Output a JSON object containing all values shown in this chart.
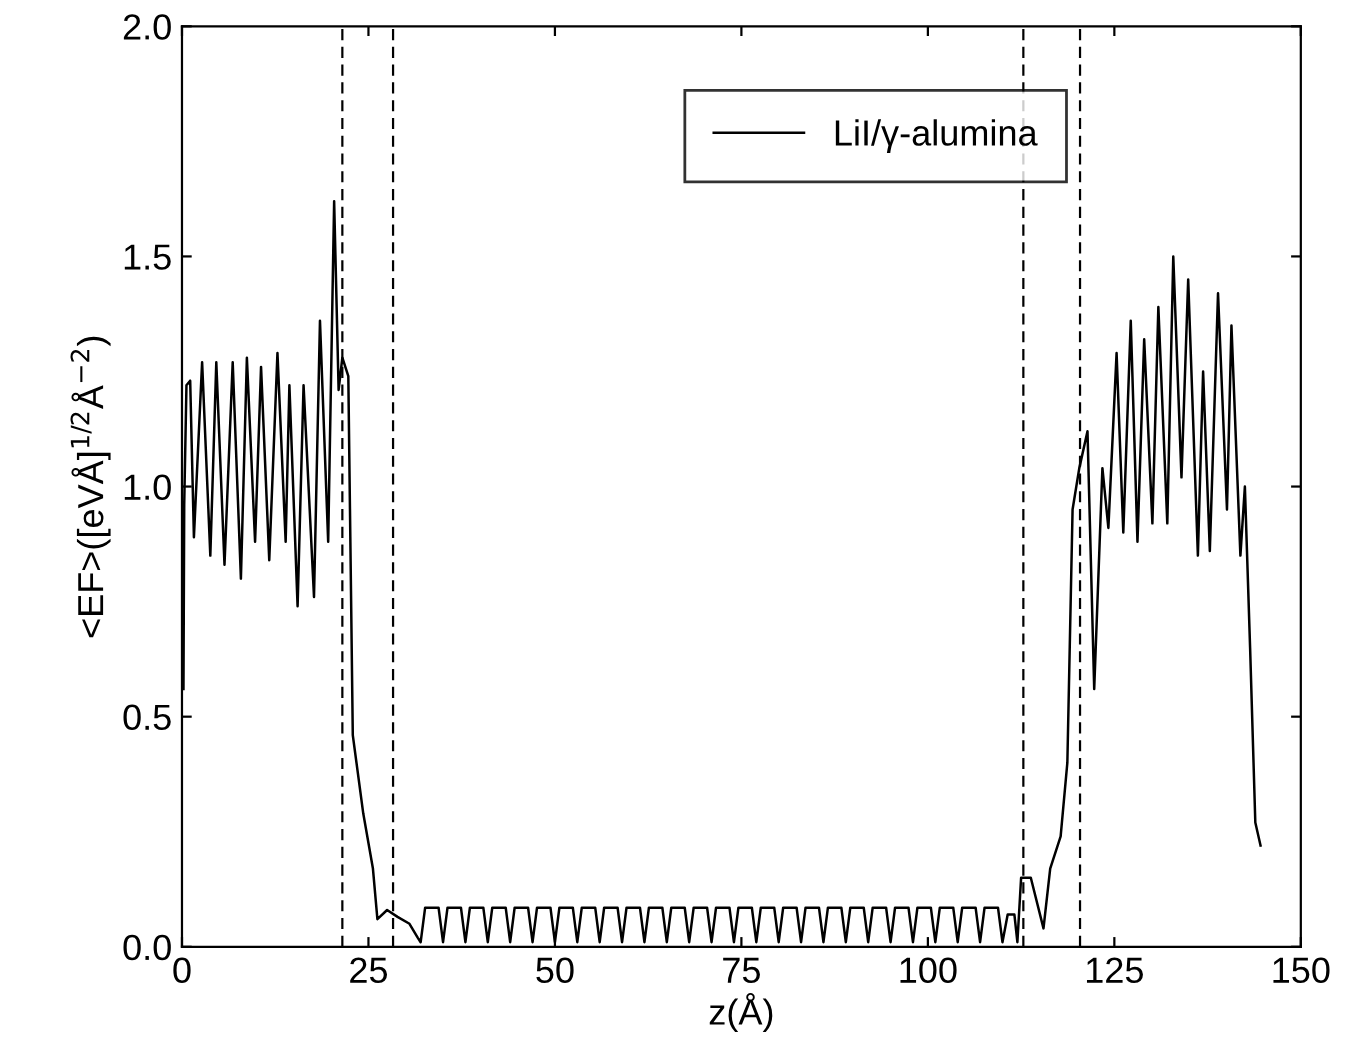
{
  "chart_data": {
    "type": "line",
    "xlabel": "z(Å)",
    "ylabel": "<EF>([eVÅ]$^{1/2}$Å$^{−2}$)",
    "xlim": [
      0,
      150
    ],
    "ylim": [
      0,
      2.0
    ],
    "xticks": [
      0,
      25,
      50,
      75,
      100,
      125,
      150
    ],
    "yticks": [
      {
        "value": 0,
        "label": "0.0"
      },
      {
        "value": 0.5,
        "label": "0.5"
      },
      {
        "value": 1.0,
        "label": "1.0"
      },
      {
        "value": 1.5,
        "label": "1.5"
      },
      {
        "value": 2.0,
        "label": "2.0"
      }
    ],
    "grid": false,
    "legend": "top",
    "marker": "none",
    "line_style": "solid",
    "ref_lines": [
      {
        "axis": "x",
        "value": 21.5,
        "color": "#000000",
        "line_style": "dashed"
      },
      {
        "axis": "x",
        "value": 28.3,
        "color": "#000000",
        "line_style": "dashed"
      },
      {
        "axis": "x",
        "value": 112.8,
        "color": "#000000",
        "line_style": "dashed"
      },
      {
        "axis": "x",
        "value": 120.4,
        "color": "#000000",
        "line_style": "dashed"
      }
    ],
    "series": [
      {
        "name": "LiI/γ-alumina",
        "color": "#000000",
        "x": [
          0.2,
          0.3,
          0.6,
          1.1,
          1.6,
          2.7,
          3.8,
          4.6,
          5.7,
          6.8,
          7.9,
          8.7,
          9.8,
          10.6,
          11.7,
          12.8,
          13.9,
          14.4,
          15.5,
          16.3,
          17.7,
          18.5,
          19.6,
          20.4,
          21.0,
          21.5,
          22.3,
          22.9,
          24.3,
          25.6,
          26.2,
          27.5,
          28.9,
          30.5,
          31.6,
          32,
          32.6,
          34.4,
          35,
          35.6,
          37.4,
          38,
          38.6,
          40.4,
          41,
          41.6,
          43.4,
          44,
          44.6,
          46.4,
          47,
          47.6,
          49.4,
          50,
          50.6,
          52.4,
          53,
          53.6,
          55.4,
          56,
          56.6,
          58.4,
          59,
          59.6,
          61.4,
          62,
          62.6,
          64.4,
          65,
          65.6,
          67.4,
          68,
          68.6,
          70.4,
          71,
          71.6,
          73.4,
          74,
          74.6,
          76.4,
          77,
          77.6,
          79.4,
          80,
          80.6,
          82.4,
          83,
          83.6,
          85.4,
          86,
          86.6,
          88.4,
          89,
          89.6,
          91.4,
          92,
          92.6,
          94.4,
          95,
          95.6,
          97.4,
          98,
          98.6,
          100.4,
          101,
          101.6,
          103.4,
          104,
          104.6,
          106.4,
          107,
          107.6,
          109.4,
          110,
          110.7,
          111.6,
          112.0,
          112.5,
          113.8,
          115.5,
          116.4,
          117.8,
          118.7,
          119.4,
          120.3,
          121.4,
          122.3,
          123.4,
          124.2,
          125.3,
          126.2,
          127.2,
          128.1,
          129.0,
          130.1,
          130.9,
          132.1,
          132.9,
          134.0,
          134.9,
          136.2,
          136.9,
          137.8,
          138.9,
          140.1,
          140.7,
          141.9,
          142.5,
          143.2,
          143.9,
          144.6
        ],
        "values": [
          0.56,
          0.96,
          1.22,
          1.23,
          0.89,
          1.27,
          0.85,
          1.27,
          0.83,
          1.27,
          0.8,
          1.28,
          0.88,
          1.26,
          0.84,
          1.29,
          0.88,
          1.22,
          0.74,
          1.22,
          0.76,
          1.36,
          0.88,
          1.62,
          1.21,
          1.28,
          1.24,
          0.46,
          0.29,
          0.17,
          0.06,
          0.08,
          0.065,
          0.05,
          0.02,
          0.01,
          0.085,
          0.085,
          0.01,
          0.085,
          0.085,
          0.01,
          0.085,
          0.085,
          0.01,
          0.085,
          0.085,
          0.01,
          0.085,
          0.085,
          0.01,
          0.085,
          0.085,
          0.01,
          0.085,
          0.085,
          0.01,
          0.085,
          0.085,
          0.01,
          0.085,
          0.085,
          0.01,
          0.085,
          0.085,
          0.01,
          0.085,
          0.085,
          0.01,
          0.085,
          0.085,
          0.01,
          0.085,
          0.085,
          0.01,
          0.085,
          0.085,
          0.01,
          0.085,
          0.085,
          0.01,
          0.085,
          0.085,
          0.01,
          0.085,
          0.085,
          0.01,
          0.085,
          0.085,
          0.01,
          0.085,
          0.085,
          0.01,
          0.085,
          0.085,
          0.01,
          0.085,
          0.085,
          0.01,
          0.085,
          0.085,
          0.01,
          0.085,
          0.085,
          0.01,
          0.085,
          0.085,
          0.01,
          0.085,
          0.085,
          0.01,
          0.085,
          0.085,
          0.01,
          0.07,
          0.07,
          0.01,
          0.15,
          0.15,
          0.04,
          0.17,
          0.24,
          0.4,
          0.95,
          1.04,
          1.12,
          0.56,
          1.04,
          0.91,
          1.29,
          0.9,
          1.36,
          0.88,
          1.32,
          0.92,
          1.39,
          0.92,
          1.5,
          1.02,
          1.45,
          0.85,
          1.25,
          0.86,
          1.42,
          0.95,
          1.35,
          0.85,
          1.0,
          0.65,
          0.27,
          0.22
        ]
      }
    ]
  }
}
